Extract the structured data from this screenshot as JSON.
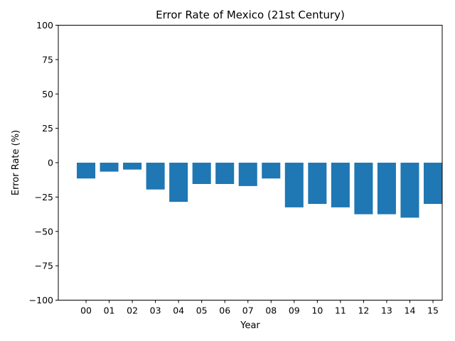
{
  "chart_data": {
    "type": "bar",
    "title": "Error Rate of Mexico (21st Century)",
    "xlabel": "Year",
    "ylabel": "Error Rate (%)",
    "categories": [
      "00",
      "01",
      "02",
      "03",
      "04",
      "05",
      "06",
      "07",
      "08",
      "09",
      "10",
      "11",
      "12",
      "13",
      "14",
      "15"
    ],
    "values": [
      -11.5,
      -6.5,
      -5,
      -19.5,
      -28.5,
      -15.5,
      -15.5,
      -17,
      -11.5,
      -32.5,
      -30,
      -32.5,
      -37.5,
      -37.5,
      -40,
      -30
    ],
    "ylim": [
      -100,
      100
    ],
    "yticks": [
      -100,
      -75,
      -50,
      -25,
      0,
      25,
      50,
      75,
      100
    ],
    "ytick_labels": [
      "−100",
      "−75",
      "−50",
      "−25",
      "0",
      "25",
      "50",
      "75",
      "100"
    ],
    "grid": false,
    "bar_color": "#1f77b4"
  }
}
